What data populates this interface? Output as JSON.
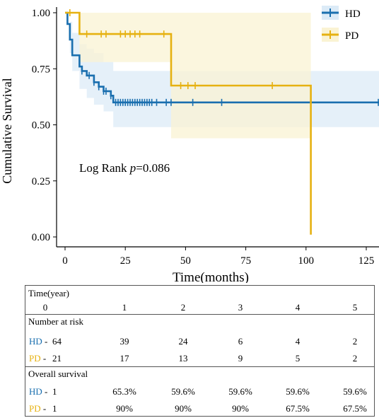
{
  "chart_data": {
    "type": "line",
    "title": "",
    "xlabel": "Time(months)",
    "ylabel": "Cumulative Survival",
    "xlim": [
      0,
      132
    ],
    "ylim": [
      0,
      1
    ],
    "x_ticks": [
      "0",
      "25",
      "50",
      "75",
      "100",
      "125"
    ],
    "y_ticks": [
      "0.00",
      "0.25",
      "0.50",
      "0.75",
      "1.00"
    ],
    "legend_position": "top-right",
    "annotation": {
      "prefix": "Log Rank ",
      "p": "p",
      "suffix": "=0.086"
    },
    "series": [
      {
        "name": "HD",
        "color": "#1a6faf",
        "ci_color": "#dcebf7",
        "steps": [
          [
            0,
            1.0
          ],
          [
            1,
            0.95
          ],
          [
            2,
            0.88
          ],
          [
            3,
            0.81
          ],
          [
            6,
            0.76
          ],
          [
            7,
            0.74
          ],
          [
            9,
            0.72
          ],
          [
            12,
            0.69
          ],
          [
            14,
            0.67
          ],
          [
            16,
            0.65
          ],
          [
            19,
            0.63
          ],
          [
            20,
            0.6
          ],
          [
            132,
            0.6
          ]
        ],
        "ci_band": [
          [
            0,
            1.0,
            1.0
          ],
          [
            2,
            0.82,
            0.96
          ],
          [
            3,
            0.74,
            0.91
          ],
          [
            6,
            0.66,
            0.86
          ],
          [
            9,
            0.62,
            0.84
          ],
          [
            12,
            0.59,
            0.82
          ],
          [
            16,
            0.56,
            0.78
          ],
          [
            20,
            0.49,
            0.74
          ],
          [
            132,
            0.49,
            0.74
          ]
        ],
        "censored": [
          [
            7,
            0.74
          ],
          [
            10,
            0.72
          ],
          [
            12,
            0.69
          ],
          [
            14,
            0.67
          ],
          [
            16,
            0.65
          ],
          [
            17,
            0.65
          ],
          [
            19,
            0.63
          ],
          [
            21,
            0.6
          ],
          [
            22,
            0.6
          ],
          [
            23,
            0.6
          ],
          [
            24,
            0.6
          ],
          [
            25,
            0.6
          ],
          [
            26,
            0.6
          ],
          [
            27,
            0.6
          ],
          [
            28,
            0.6
          ],
          [
            29,
            0.6
          ],
          [
            30,
            0.6
          ],
          [
            31,
            0.6
          ],
          [
            32,
            0.6
          ],
          [
            33,
            0.6
          ],
          [
            34,
            0.6
          ],
          [
            35,
            0.6
          ],
          [
            36,
            0.6
          ],
          [
            38,
            0.6
          ],
          [
            42,
            0.6
          ],
          [
            44,
            0.6
          ],
          [
            53,
            0.6
          ],
          [
            65,
            0.6
          ],
          [
            130,
            0.6
          ]
        ]
      },
      {
        "name": "PD",
        "color": "#e6b111",
        "ci_color": "#faf3d3",
        "steps": [
          [
            0,
            1.0
          ],
          [
            6,
            0.905
          ],
          [
            43,
            0.905
          ],
          [
            44,
            0.675
          ],
          [
            102,
            0.675
          ],
          [
            102,
            0.01
          ]
        ],
        "ci_band": [
          [
            0,
            1.0,
            1.0
          ],
          [
            6,
            0.78,
            1.0
          ],
          [
            44,
            0.44,
            1.0
          ],
          [
            102,
            0.44,
            1.0
          ]
        ],
        "censored": [
          [
            2,
            1.0
          ],
          [
            9,
            0.905
          ],
          [
            15,
            0.905
          ],
          [
            17,
            0.905
          ],
          [
            23,
            0.905
          ],
          [
            25,
            0.905
          ],
          [
            27,
            0.905
          ],
          [
            29,
            0.905
          ],
          [
            31,
            0.905
          ],
          [
            41,
            0.905
          ],
          [
            48,
            0.675
          ],
          [
            51,
            0.675
          ],
          [
            54,
            0.675
          ],
          [
            86,
            0.675
          ]
        ]
      }
    ],
    "table": {
      "time_header": "Time(year)",
      "years": [
        "0",
        "1",
        "2",
        "3",
        "4",
        "5"
      ],
      "risk_header": "Number at risk",
      "risk": [
        {
          "group": "HD",
          "values": [
            "64",
            "39",
            "24",
            "6",
            "4",
            "2"
          ]
        },
        {
          "group": "PD",
          "values": [
            "21",
            "17",
            "13",
            "9",
            "5",
            "2"
          ]
        }
      ],
      "surv_header": "Overall survival",
      "survival": [
        {
          "group": "HD",
          "values": [
            "1",
            "65.3%",
            "59.6%",
            "59.6%",
            "59.6%",
            "59.6%"
          ]
        },
        {
          "group": "PD",
          "values": [
            "1",
            "90%",
            "90%",
            "90%",
            "67.5%",
            "67.5%"
          ]
        }
      ]
    }
  }
}
